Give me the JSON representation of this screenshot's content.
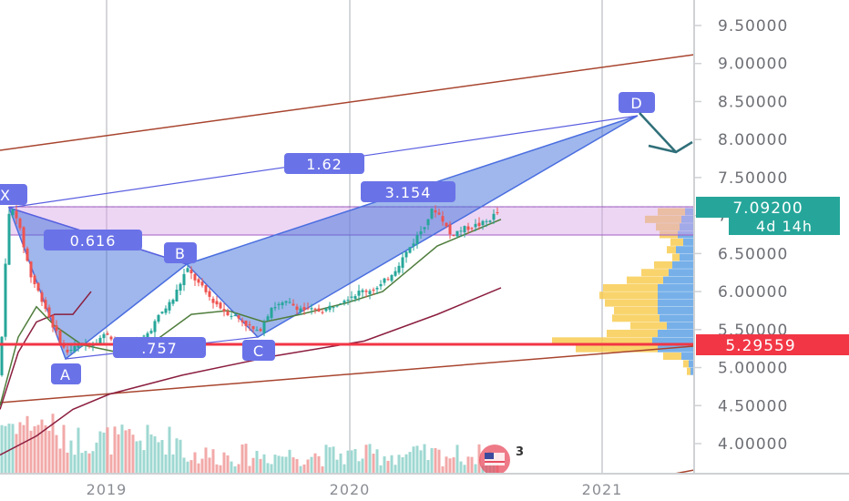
{
  "chart_data": {
    "type": "candlestick",
    "y_axis": {
      "ticks": [
        "9.50000",
        "9.00000",
        "8.50000",
        "8.00000",
        "7.50000",
        "7.00000",
        "6.50000",
        "6.00000",
        "5.50000",
        "5.00000",
        "4.50000",
        "4.00000"
      ],
      "range": [
        3.6,
        9.75
      ],
      "position": "right"
    },
    "x_axis": {
      "ticks": [
        "2019",
        "2020",
        "2021"
      ]
    },
    "price_tags": [
      {
        "label": "7.09200",
        "value": 7.092,
        "color": "#26a69a"
      },
      {
        "label": "4d 14h",
        "color": "#26a69a"
      },
      {
        "label": "5.29559",
        "value": 5.29559,
        "color": "#f23645"
      }
    ],
    "pattern": {
      "name": "harmonic",
      "points": [
        {
          "label": "X",
          "value": 7.09
        },
        {
          "label": "A",
          "value": 5.12
        },
        {
          "label": "B",
          "value": 6.36
        },
        {
          "label": "C",
          "value": 5.36
        },
        {
          "label": "D",
          "value": 8.3
        }
      ],
      "ratios": [
        "0.616",
        ".757",
        "1.62",
        "3.154"
      ]
    },
    "zones": [
      {
        "from": 6.7,
        "to": 7.09,
        "color": "#d7a4e6"
      }
    ],
    "horizontal_lines": [
      {
        "value": 5.29559,
        "color": "#f23645"
      }
    ],
    "grid": true,
    "volume": true,
    "volume_profile": true
  },
  "icons": {
    "watermark": "tradingview-flag-icon",
    "watermark_badge": "3",
    "arrow": "down-arrow-icon"
  }
}
